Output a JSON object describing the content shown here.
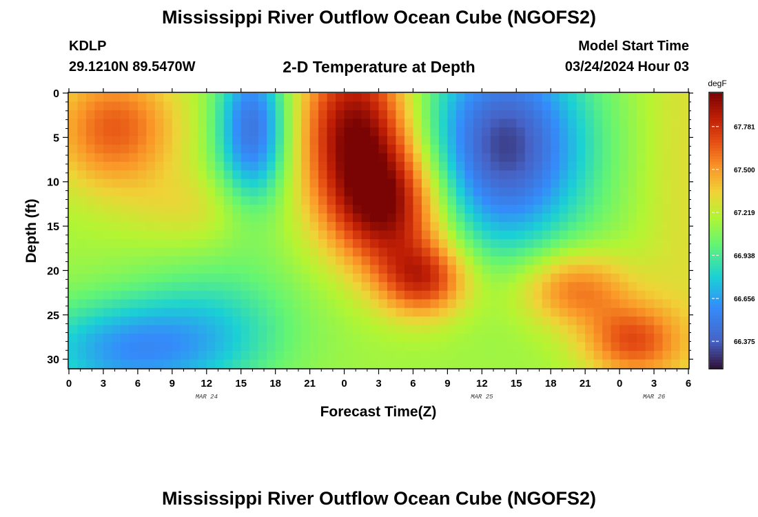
{
  "header": {
    "title": "Mississippi River Outflow Ocean Cube (NGOFS2)",
    "station": "KDLP",
    "coords": "29.1210N  89.5470W",
    "subtitle": "2-D Temperature at Depth",
    "model_start_label": "Model Start Time",
    "model_start_value": "03/24/2024 Hour 03"
  },
  "footer": {
    "title": "Mississippi River Outflow Ocean Cube (NGOFS2)"
  },
  "chart_data": {
    "type": "heatmap",
    "xlabel": "Forecast Time(Z)",
    "ylabel": "Depth (ft)",
    "x_range_hours": [
      0,
      54
    ],
    "x_tick_labels": [
      "0",
      "3",
      "6",
      "9",
      "12",
      "15",
      "18",
      "21",
      "0",
      "3",
      "6",
      "9",
      "12",
      "15",
      "18",
      "21",
      "0",
      "3",
      "6"
    ],
    "x_date_labels": [
      {
        "label": "MAR 24",
        "at_hour": 12
      },
      {
        "label": "MAR 25",
        "at_hour": 36
      },
      {
        "label": "MAR 26",
        "at_hour": 51
      }
    ],
    "y_range": [
      0,
      31
    ],
    "y_inverted": true,
    "y_ticks": [
      0,
      5,
      10,
      15,
      20,
      25,
      30
    ],
    "colorbar": {
      "unit": "degF",
      "min": 66.2,
      "max": 68.0,
      "tick_labels": [
        "67.781",
        "67.500",
        "67.219",
        "66.938",
        "66.656",
        "66.375"
      ],
      "tick_values": [
        67.781,
        67.5,
        67.219,
        66.938,
        66.656,
        66.375
      ]
    },
    "features": [
      {
        "t": 4,
        "d": 4,
        "v": 67.65,
        "st": 4,
        "sd": 5
      },
      {
        "t": 11,
        "d": 13,
        "v": 67.3,
        "st": 4,
        "sd": 3
      },
      {
        "t": 16,
        "d": 4,
        "v": 66.45,
        "st": 2.2,
        "sd": 6
      },
      {
        "t": 25,
        "d": 4,
        "v": 67.95,
        "st": 3.5,
        "sd": 7
      },
      {
        "t": 28,
        "d": 13,
        "v": 67.85,
        "st": 3.5,
        "sd": 5
      },
      {
        "t": 31,
        "d": 21,
        "v": 67.75,
        "st": 2.8,
        "sd": 3
      },
      {
        "t": 38,
        "d": 6,
        "v": 66.3,
        "st": 5,
        "sd": 8
      },
      {
        "t": 44,
        "d": 22,
        "v": 67.6,
        "st": 3.5,
        "sd": 3
      },
      {
        "t": 49,
        "d": 28,
        "v": 67.65,
        "st": 3,
        "sd": 3
      },
      {
        "t": 5,
        "d": 29,
        "v": 66.65,
        "st": 6,
        "sd": 4
      },
      {
        "t": 13,
        "d": 26,
        "v": 66.9,
        "st": 5,
        "sd": 5
      },
      {
        "t": 54,
        "d": 10,
        "v": 67.3,
        "st": 3,
        "sd": 25
      }
    ]
  }
}
